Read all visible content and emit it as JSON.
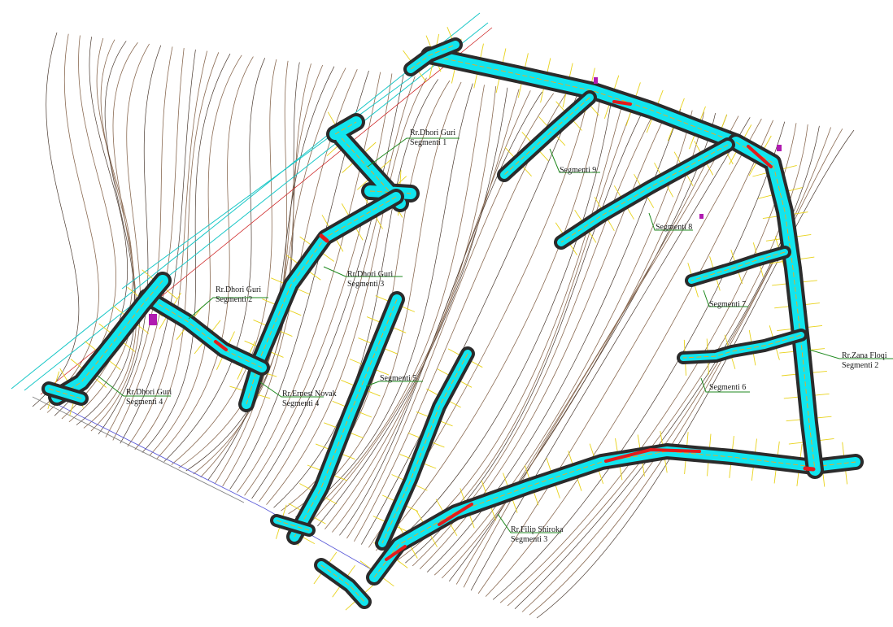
{
  "labels": {
    "dhori_guri_1": {
      "street": "Rr.Dhori Guri",
      "segment": "Segmenti 1"
    },
    "dhori_guri_2": {
      "street": "Rr.Dhori Guri",
      "segment": "Segmenti 2"
    },
    "dhori_guri_3": {
      "street": "Rr.Dhori Guri",
      "segment": "Segmenti 3"
    },
    "dhori_guri_4": {
      "street": "Rr.Dhori Guri",
      "segment": "Segmenti 4"
    },
    "ernest_novak_4": {
      "street": "Rr.Ernest Novak",
      "segment": "Segmenti 4"
    },
    "segment_5": {
      "segment": "Segmenti 5"
    },
    "segment_6": {
      "segment": "Segmenti 6"
    },
    "segment_7": {
      "segment": "Segmenti 7"
    },
    "segment_8": {
      "segment": "Segmenti 8"
    },
    "segment_9": {
      "segment": "Segmenti 9"
    },
    "zana_floqi_2": {
      "street": "Rr.Zana Floqi",
      "segment": "Segmenti 2"
    },
    "filip_shiroka_3": {
      "street": "Rr.Filip Shiroka",
      "segment": "Segmenti 3"
    }
  },
  "colors": {
    "road_fill": "#12e5ee",
    "road_outline": "#2b2b2b",
    "road_edge": "#f2a81c",
    "contour_light": "#8a6a52",
    "contour_dark": "#4a3a30",
    "leader": "#1f8a1f",
    "warning": "#e21b1b"
  }
}
